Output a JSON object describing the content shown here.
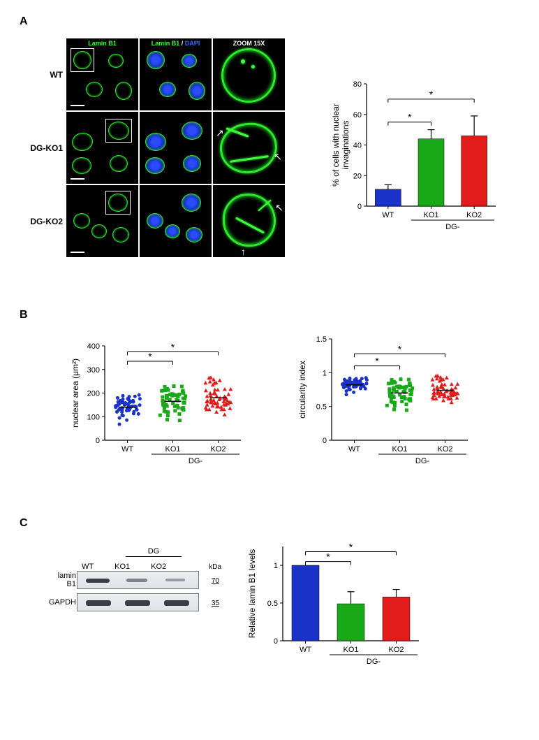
{
  "panelA": {
    "label": "A",
    "rows": [
      "WT",
      "DG-KO1",
      "DG-KO2"
    ],
    "col_headers": {
      "c1": "Lamin B1",
      "c2a": "Lamin B1",
      "c2b": " / ",
      "c2c": "DAPI",
      "c3": "ZOOM 15X"
    },
    "barChart": {
      "type": "bar",
      "ytitle_line1": "% of cells with nuclear",
      "ytitle_line2": "invaginations",
      "ylim": [
        0,
        80
      ],
      "ytick_step": 20,
      "categories": [
        "WT",
        "KO1",
        "KO2"
      ],
      "group_label": "DG-",
      "values": [
        11,
        44,
        46
      ],
      "errors": [
        3,
        6,
        13
      ],
      "colors": [
        "#1a32c8",
        "#18a818",
        "#e21b1b"
      ],
      "sig": [
        {
          "from": 0,
          "to": 1,
          "label": "*",
          "y": 55
        },
        {
          "from": 0,
          "to": 2,
          "label": "*",
          "y": 70
        }
      ],
      "background": "#ffffff",
      "axis_color": "#000000",
      "bar_width": 0.6
    }
  },
  "panelB": {
    "label": "B",
    "scatter1": {
      "type": "scatter",
      "ytitle": "nuclear area (μm²)",
      "ylim": [
        0,
        400
      ],
      "ytick_step": 100,
      "categories": [
        "WT",
        "KO1",
        "KO2"
      ],
      "group_label": "DG-",
      "means": [
        140,
        165,
        180
      ],
      "spread": [
        60,
        70,
        80
      ],
      "colors": [
        "#1a32c8",
        "#18a818",
        "#e21b1b"
      ],
      "markers": [
        "circle",
        "square",
        "triangle"
      ],
      "sig": [
        {
          "from": 0,
          "to": 1,
          "label": "*",
          "y": 335
        },
        {
          "from": 0,
          "to": 2,
          "label": "*",
          "y": 375
        }
      ],
      "n_points": 60
    },
    "scatter2": {
      "type": "scatter",
      "ytitle": "circularity index",
      "ylim": [
        0,
        1.5
      ],
      "ytick_step": 0.5,
      "categories": [
        "WT",
        "KO1",
        "KO2"
      ],
      "group_label": "DG-",
      "means": [
        0.82,
        0.7,
        0.74
      ],
      "spread": [
        0.12,
        0.22,
        0.2
      ],
      "colors": [
        "#1a32c8",
        "#18a818",
        "#e21b1b"
      ],
      "markers": [
        "circle",
        "square",
        "triangle"
      ],
      "sig": [
        {
          "from": 0,
          "to": 1,
          "label": "*",
          "y": 1.1
        },
        {
          "from": 0,
          "to": 2,
          "label": "*",
          "y": 1.28
        }
      ],
      "n_points": 60
    }
  },
  "panelC": {
    "label": "C",
    "blot": {
      "lanes": [
        "WT",
        "KO1",
        "KO2"
      ],
      "group_label": "DG",
      "kda_label": "kDa",
      "rows": [
        {
          "name": "lamin\nB1",
          "kda": "70",
          "intens": [
            1.0,
            0.55,
            0.4
          ]
        },
        {
          "name": "GAPDH",
          "kda": "35",
          "intens": [
            1.0,
            1.0,
            1.0
          ]
        }
      ]
    },
    "barChart": {
      "type": "bar",
      "ytitle": "Relative lamin B1 levels",
      "ylim": [
        0,
        1.25
      ],
      "yticks": [
        0,
        0.5,
        1.0
      ],
      "categories": [
        "WT",
        "KO1",
        "KO2"
      ],
      "group_label": "DG-",
      "values": [
        1.0,
        0.49,
        0.58
      ],
      "errors": [
        0,
        0.16,
        0.1
      ],
      "colors": [
        "#1a32c8",
        "#18a818",
        "#e21b1b"
      ],
      "sig": [
        {
          "from": 0,
          "to": 1,
          "label": "*",
          "y": 1.05
        },
        {
          "from": 0,
          "to": 2,
          "label": "*",
          "y": 1.18
        }
      ],
      "bar_width": 0.6
    }
  }
}
